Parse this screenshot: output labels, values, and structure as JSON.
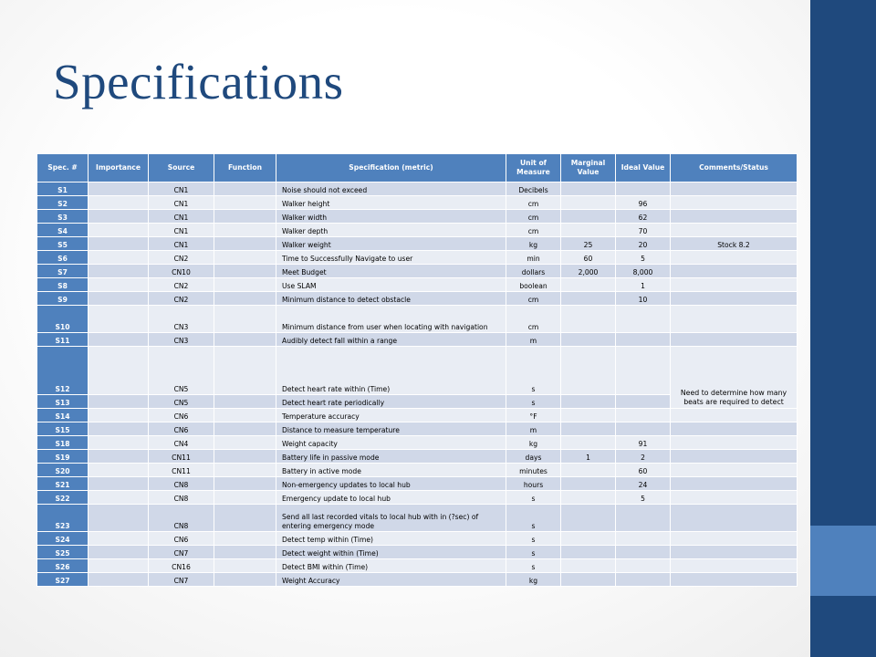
{
  "slide": {
    "title": "Specifications",
    "colors": {
      "title": "#1f497d",
      "sidebar": "#1f497d",
      "sidebar_accent": "#4f81bd",
      "header": "#4f81bd",
      "row_dark": "#d0d8e8",
      "row_light": "#e9edf4"
    }
  },
  "table": {
    "headers": {
      "spec": "Spec. #",
      "importance": "Importance",
      "source": "Source",
      "function": "Function",
      "metric": "Specification (metric)",
      "unit": "Unit of Measure",
      "marginal": "Marginal Value",
      "ideal": "Ideal Value",
      "comments": "Comments/Status"
    },
    "rows": [
      {
        "spec": "S1",
        "importance": "",
        "source": "CN1",
        "function": "",
        "metric": "Noise should not exceed",
        "unit": "Decibels",
        "marginal": "",
        "ideal": "",
        "comments": ""
      },
      {
        "spec": "S2",
        "importance": "",
        "source": "CN1",
        "function": "",
        "metric": "Walker height",
        "unit": "cm",
        "marginal": "",
        "ideal": "96",
        "comments": ""
      },
      {
        "spec": "S3",
        "importance": "",
        "source": "CN1",
        "function": "",
        "metric": "Walker width",
        "unit": "cm",
        "marginal": "",
        "ideal": "62",
        "comments": ""
      },
      {
        "spec": "S4",
        "importance": "",
        "source": "CN1",
        "function": "",
        "metric": "Walker depth",
        "unit": "cm",
        "marginal": "",
        "ideal": "70",
        "comments": ""
      },
      {
        "spec": "S5",
        "importance": "",
        "source": "CN1",
        "function": "",
        "metric": "Walker weight",
        "unit": "kg",
        "marginal": "25",
        "ideal": "20",
        "comments": "Stock 8.2"
      },
      {
        "spec": "S6",
        "importance": "",
        "source": "CN2",
        "function": "",
        "metric": "Time to Successfully Navigate to user",
        "unit": "min",
        "marginal": "60",
        "ideal": "5",
        "comments": ""
      },
      {
        "spec": "S7",
        "importance": "",
        "source": "CN10",
        "function": "",
        "metric": "Meet Budget",
        "unit": "dollars",
        "marginal": "2,000",
        "ideal": "8,000",
        "comments": ""
      },
      {
        "spec": "S8",
        "importance": "",
        "source": "CN2",
        "function": "",
        "metric": "Use SLAM",
        "unit": "boolean",
        "marginal": "",
        "ideal": "1",
        "comments": ""
      },
      {
        "spec": "S9",
        "importance": "",
        "source": "CN2",
        "function": "",
        "metric": "Minimum distance to detect obstacle",
        "unit": "cm",
        "marginal": "",
        "ideal": "10",
        "comments": ""
      },
      {
        "spec": "S10",
        "importance": "",
        "source": "CN3",
        "function": "",
        "metric": "Minimum distance from user when locating with navigation",
        "unit": "cm",
        "marginal": "",
        "ideal": "",
        "comments": ""
      },
      {
        "spec": "S11",
        "importance": "",
        "source": "CN3",
        "function": "",
        "metric": "Audibly detect fall within a range",
        "unit": "m",
        "marginal": "",
        "ideal": "",
        "comments": ""
      },
      {
        "spec": "S12",
        "importance": "",
        "source": "CN5",
        "function": "",
        "metric": "Detect heart rate within (Time)",
        "unit": "s",
        "marginal": "",
        "ideal": "",
        "comments": "Need to determine how many beats are required to detect"
      },
      {
        "spec": "S13",
        "importance": "",
        "source": "CN5",
        "function": "",
        "metric": "Detect heart rate periodically",
        "unit": "s",
        "marginal": "",
        "ideal": "",
        "comments": ""
      },
      {
        "spec": "S14",
        "importance": "",
        "source": "CN6",
        "function": "",
        "metric": "Temperature accuracy",
        "unit": "°F",
        "marginal": "",
        "ideal": "",
        "comments": ""
      },
      {
        "spec": "S15",
        "importance": "",
        "source": "CN6",
        "function": "",
        "metric": "Distance to measure temperature",
        "unit": "m",
        "marginal": "",
        "ideal": "",
        "comments": ""
      },
      {
        "spec": "S18",
        "importance": "",
        "source": "CN4",
        "function": "",
        "metric": "Weight capacity",
        "unit": "kg",
        "marginal": "",
        "ideal": "91",
        "comments": ""
      },
      {
        "spec": "S19",
        "importance": "",
        "source": "CN11",
        "function": "",
        "metric": "Battery life in passive mode",
        "unit": "days",
        "marginal": "1",
        "ideal": "2",
        "comments": ""
      },
      {
        "spec": "S20",
        "importance": "",
        "source": "CN11",
        "function": "",
        "metric": "Battery in active mode",
        "unit": "minutes",
        "marginal": "",
        "ideal": "60",
        "comments": ""
      },
      {
        "spec": "S21",
        "importance": "",
        "source": "CN8",
        "function": "",
        "metric": "Non-emergency updates to local hub",
        "unit": "hours",
        "marginal": "",
        "ideal": "24",
        "comments": ""
      },
      {
        "spec": "S22",
        "importance": "",
        "source": "CN8",
        "function": "",
        "metric": "Emergency update to local hub",
        "unit": "s",
        "marginal": "",
        "ideal": "5",
        "comments": ""
      },
      {
        "spec": "S23",
        "importance": "",
        "source": "CN8",
        "function": "",
        "metric": "Send all last recorded vitals to local hub with in (?sec) of entering emergency mode",
        "unit": "s",
        "marginal": "",
        "ideal": "",
        "comments": ""
      },
      {
        "spec": "S24",
        "importance": "",
        "source": "CN6",
        "function": "",
        "metric": "Detect temp within (Time)",
        "unit": "s",
        "marginal": "",
        "ideal": "",
        "comments": ""
      },
      {
        "spec": "S25",
        "importance": "",
        "source": "CN7",
        "function": "",
        "metric": "Detect weight within (Time)",
        "unit": "s",
        "marginal": "",
        "ideal": "",
        "comments": ""
      },
      {
        "spec": "S26",
        "importance": "",
        "source": "CN16",
        "function": "",
        "metric": "Detect BMI within (Time)",
        "unit": "s",
        "marginal": "",
        "ideal": "",
        "comments": ""
      },
      {
        "spec": "S27",
        "importance": "",
        "source": "CN7",
        "function": "",
        "metric": "Weight Accuracy",
        "unit": "kg",
        "marginal": "",
        "ideal": "",
        "comments": ""
      }
    ]
  }
}
